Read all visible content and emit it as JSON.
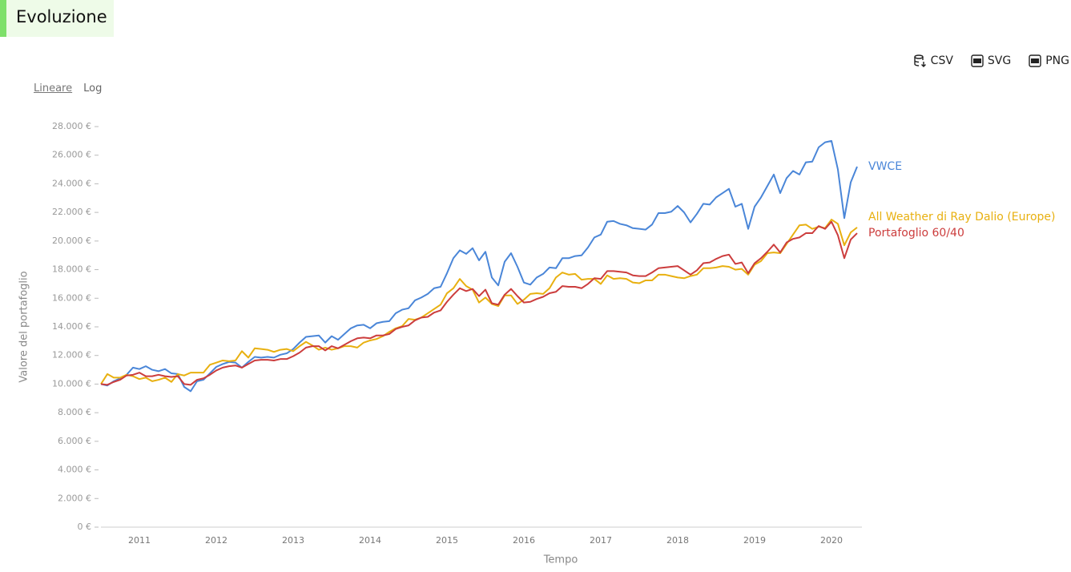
{
  "header": {
    "title": "Evoluzione"
  },
  "toolbar": [
    "CSV",
    "SVG",
    "PNG"
  ],
  "scale_options": [
    "Lineare",
    "Log"
  ],
  "chart_data": {
    "type": "line",
    "x_label": "Tempo",
    "y_label": "Valore del portafoglio",
    "categories": [
      null,
      null,
      null,
      null,
      null,
      null,
      "2011",
      null,
      null,
      null,
      null,
      null,
      null,
      null,
      null,
      null,
      null,
      null,
      "2012",
      null,
      null,
      null,
      null,
      null,
      null,
      null,
      null,
      null,
      null,
      null,
      "2013",
      null,
      null,
      null,
      null,
      null,
      null,
      null,
      null,
      null,
      null,
      null,
      "2014",
      null,
      null,
      null,
      null,
      null,
      null,
      null,
      null,
      null,
      null,
      null,
      "2015",
      null,
      null,
      null,
      null,
      null,
      null,
      null,
      null,
      null,
      null,
      null,
      "2016",
      null,
      null,
      null,
      null,
      null,
      null,
      null,
      null,
      null,
      null,
      null,
      "2017",
      null,
      null,
      null,
      null,
      null,
      null,
      null,
      null,
      null,
      null,
      null,
      "2018",
      null,
      null,
      null,
      null,
      null,
      null,
      null,
      null,
      null,
      null,
      null,
      "2019",
      null,
      null,
      null,
      null,
      null,
      null,
      null,
      null,
      null,
      null,
      null,
      "2020",
      null,
      null,
      null,
      null
    ],
    "ylim": [
      0,
      28000
    ],
    "yticks": [
      {
        "value": 0,
        "label": "0 €"
      },
      {
        "value": 2000,
        "label": "2.000 €"
      },
      {
        "value": 4000,
        "label": "4.000 €"
      },
      {
        "value": 6000,
        "label": "6.000 €"
      },
      {
        "value": 8000,
        "label": "8.000 €"
      },
      {
        "value": 10000,
        "label": "10.000 €"
      },
      {
        "value": 12000,
        "label": "12.000 €"
      },
      {
        "value": 14000,
        "label": "14.000 €"
      },
      {
        "value": 16000,
        "label": "16.000 €"
      },
      {
        "value": 18000,
        "label": "18.000 €"
      },
      {
        "value": 20000,
        "label": "20.000 €"
      },
      {
        "value": 22000,
        "label": "22.000 €"
      },
      {
        "value": 24000,
        "label": "24.000 €"
      },
      {
        "value": 26000,
        "label": "26.000 €"
      },
      {
        "value": 28000,
        "label": "28.000 €"
      }
    ],
    "series": [
      {
        "name": "VWCE",
        "color": "#4a86d8",
        "values": [
          10000,
          9900,
          10200,
          10400,
          10650,
          11150,
          11050,
          11250,
          11000,
          10900,
          11050,
          10750,
          10700,
          9800,
          9500,
          10200,
          10300,
          10750,
          11200,
          11400,
          11550,
          11500,
          11150,
          11550,
          11900,
          11850,
          11900,
          11850,
          12050,
          12150,
          12450,
          12900,
          13300,
          13350,
          13400,
          12900,
          13350,
          13100,
          13500,
          13900,
          14100,
          14150,
          13900,
          14250,
          14350,
          14400,
          14950,
          15200,
          15300,
          15850,
          16050,
          16300,
          16700,
          16800,
          17750,
          18800,
          19350,
          19100,
          19500,
          18650,
          19250,
          17450,
          16900,
          18550,
          19150,
          18200,
          17100,
          16950,
          17450,
          17700,
          18150,
          18100,
          18800,
          18800,
          18950,
          19000,
          19550,
          20250,
          20450,
          21350,
          21400,
          21200,
          21100,
          20900,
          20850,
          20800,
          21150,
          21950,
          21950,
          22050,
          22450,
          22000,
          21300,
          21900,
          22600,
          22550,
          23050,
          23350,
          23650,
          22400,
          22600,
          20850,
          22400,
          23050,
          23850,
          24650,
          23350,
          24400,
          24900,
          24650,
          25500,
          25550,
          26550,
          26900,
          27000,
          25000,
          21600,
          24100,
          25200
        ]
      },
      {
        "name": "All Weather di Ray Dalio (Europe)",
        "color": "#e8b010",
        "values": [
          10000,
          10700,
          10450,
          10450,
          10650,
          10550,
          10350,
          10450,
          10200,
          10300,
          10450,
          10150,
          10700,
          10600,
          10800,
          10800,
          10800,
          11350,
          11500,
          11650,
          11600,
          11650,
          12300,
          11850,
          12500,
          12450,
          12400,
          12250,
          12400,
          12450,
          12300,
          12650,
          12950,
          12700,
          12400,
          12550,
          12400,
          12500,
          12650,
          12650,
          12550,
          12900,
          13050,
          13150,
          13350,
          13650,
          13900,
          14050,
          14550,
          14500,
          14650,
          14950,
          15250,
          15550,
          16350,
          16700,
          17350,
          16850,
          16600,
          15700,
          16050,
          15600,
          15450,
          16200,
          16200,
          15600,
          15900,
          16300,
          16350,
          16300,
          16700,
          17450,
          17800,
          17650,
          17700,
          17300,
          17350,
          17350,
          17000,
          17600,
          17350,
          17400,
          17350,
          17100,
          17050,
          17250,
          17250,
          17650,
          17650,
          17550,
          17450,
          17400,
          17550,
          17650,
          18100,
          18100,
          18150,
          18250,
          18200,
          18000,
          18050,
          17650,
          18350,
          18600,
          19150,
          19200,
          19150,
          19800,
          20450,
          21100,
          21150,
          20850,
          21000,
          20900,
          21500,
          21200,
          19700,
          20600,
          20950
        ]
      },
      {
        "name": "Portafoglio 60/40",
        "color": "#cc3d3d",
        "values": [
          10000,
          9950,
          10150,
          10300,
          10600,
          10650,
          10800,
          10550,
          10550,
          10650,
          10550,
          10500,
          10550,
          10000,
          9950,
          10300,
          10400,
          10650,
          10950,
          11150,
          11250,
          11300,
          11150,
          11400,
          11650,
          11700,
          11700,
          11650,
          11750,
          11750,
          11950,
          12200,
          12550,
          12650,
          12650,
          12350,
          12650,
          12500,
          12750,
          13000,
          13200,
          13250,
          13200,
          13400,
          13400,
          13500,
          13850,
          14000,
          14100,
          14450,
          14650,
          14700,
          15000,
          15150,
          15750,
          16250,
          16700,
          16500,
          16650,
          16150,
          16600,
          15650,
          15550,
          16250,
          16650,
          16150,
          15700,
          15750,
          15950,
          16100,
          16350,
          16450,
          16850,
          16800,
          16800,
          16700,
          17000,
          17400,
          17350,
          17900,
          17900,
          17850,
          17800,
          17600,
          17550,
          17550,
          17800,
          18100,
          18150,
          18200,
          18250,
          17950,
          17650,
          17950,
          18450,
          18500,
          18750,
          18950,
          19050,
          18400,
          18500,
          17750,
          18450,
          18800,
          19250,
          19750,
          19200,
          19900,
          20150,
          20250,
          20550,
          20550,
          21050,
          20850,
          21350,
          20400,
          18800,
          20100,
          20550
        ]
      }
    ]
  }
}
